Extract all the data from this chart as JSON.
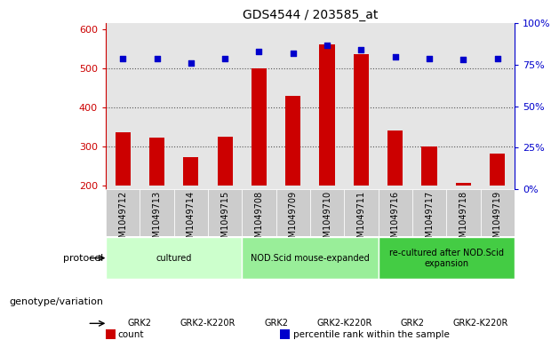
{
  "title": "GDS4544 / 203585_at",
  "samples": [
    "GSM1049712",
    "GSM1049713",
    "GSM1049714",
    "GSM1049715",
    "GSM1049708",
    "GSM1049709",
    "GSM1049710",
    "GSM1049711",
    "GSM1049716",
    "GSM1049717",
    "GSM1049718",
    "GSM1049719"
  ],
  "counts": [
    335,
    322,
    272,
    325,
    500,
    430,
    560,
    535,
    340,
    300,
    205,
    280
  ],
  "percentiles": [
    79,
    79,
    76,
    79,
    83,
    82,
    87,
    84,
    80,
    79,
    78,
    79
  ],
  "ylim_left": [
    190,
    615
  ],
  "ylim_right": [
    0,
    100
  ],
  "yticks_left": [
    200,
    300,
    400,
    500,
    600
  ],
  "yticks_right": [
    0,
    25,
    50,
    75,
    100
  ],
  "bar_color": "#cc0000",
  "scatter_color": "#0000cc",
  "bar_bottom": 200,
  "protocol_row": {
    "groups": [
      {
        "label": "cultured",
        "start": 0,
        "end": 4,
        "color": "#ccffcc"
      },
      {
        "label": "NOD.Scid mouse-expanded",
        "start": 4,
        "end": 8,
        "color": "#99ee99"
      },
      {
        "label": "re-cultured after NOD.Scid\nexpansion",
        "start": 8,
        "end": 12,
        "color": "#44cc44"
      }
    ]
  },
  "genotype_row": {
    "groups": [
      {
        "label": "GRK2",
        "start": 0,
        "end": 2,
        "color": "#ee66ee"
      },
      {
        "label": "GRK2-K220R",
        "start": 2,
        "end": 4,
        "color": "#cc44cc"
      },
      {
        "label": "GRK2",
        "start": 4,
        "end": 6,
        "color": "#ee66ee"
      },
      {
        "label": "GRK2-K220R",
        "start": 6,
        "end": 8,
        "color": "#cc44cc"
      },
      {
        "label": "GRK2",
        "start": 8,
        "end": 10,
        "color": "#ee66ee"
      },
      {
        "label": "GRK2-K220R",
        "start": 10,
        "end": 12,
        "color": "#cc44cc"
      }
    ]
  },
  "legend_items": [
    {
      "label": "count",
      "color": "#cc0000"
    },
    {
      "label": "percentile rank within the sample",
      "color": "#0000cc"
    }
  ],
  "left_axis_color": "#cc0000",
  "right_axis_color": "#0000cc",
  "grid_dotted_color": "#555555",
  "background_color": "#ffffff",
  "sample_bg_color": "#cccccc",
  "label_fontsize": 8,
  "tick_fontsize": 8,
  "sample_fontsize": 7,
  "row_fontsize": 7,
  "figsize": [
    6.13,
    3.93
  ],
  "dpi": 100
}
